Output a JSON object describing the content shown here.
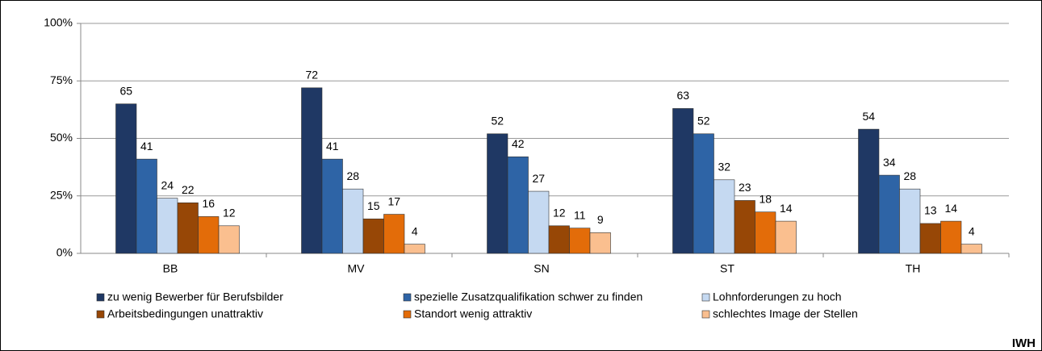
{
  "chart_data": {
    "type": "bar",
    "categories": [
      "BB",
      "MV",
      "SN",
      "ST",
      "TH"
    ],
    "series": [
      {
        "name": "zu wenig Bewerber für Berufsbilder",
        "color": "#1f3864",
        "values": [
          65,
          72,
          52,
          63,
          54
        ]
      },
      {
        "name": "spezielle Zusatzqualifikation schwer zu finden",
        "color": "#2e64a6",
        "values": [
          41,
          41,
          42,
          52,
          34
        ]
      },
      {
        "name": "Lohnforderungen zu hoch",
        "color": "#c5d9f1",
        "values": [
          24,
          28,
          27,
          32,
          28
        ]
      },
      {
        "name": "Arbeitsbedingungen unattraktiv",
        "color": "#974706",
        "values": [
          22,
          15,
          12,
          23,
          13
        ]
      },
      {
        "name": "Standort wenig attraktiv",
        "color": "#e36c09",
        "values": [
          16,
          17,
          11,
          18,
          14
        ]
      },
      {
        "name": "schlechtes Image der Stellen",
        "color": "#fabf8f",
        "values": [
          12,
          4,
          9,
          14,
          4
        ]
      }
    ],
    "ylim": [
      0,
      100
    ],
    "yticks": [
      {
        "value": 0,
        "label": "0%"
      },
      {
        "value": 25,
        "label": "25%"
      },
      {
        "value": 50,
        "label": "50%"
      },
      {
        "value": 75,
        "label": "75%"
      },
      {
        "value": 100,
        "label": "100%"
      }
    ],
    "grid": true,
    "source": "IWH"
  }
}
